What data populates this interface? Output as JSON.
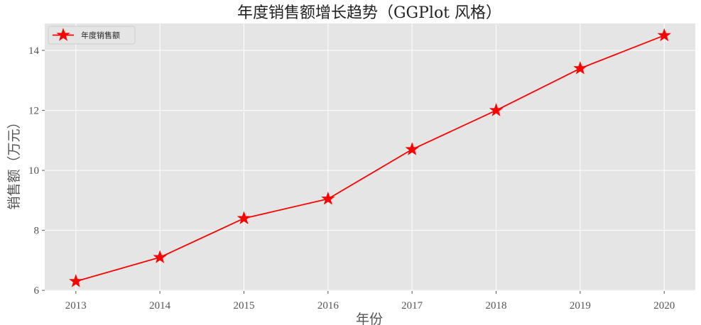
{
  "chart_data": {
    "type": "line",
    "title": "年度销售额增长趋势（GGPlot 风格）",
    "xlabel": "年份",
    "ylabel": "销售额（万元）",
    "x": [
      2013,
      2014,
      2015,
      2016,
      2017,
      2018,
      2019,
      2020
    ],
    "x_tick_labels": [
      "2013",
      "2014",
      "2015",
      "2016",
      "2017",
      "2018",
      "2019",
      "2020"
    ],
    "y_ticks": [
      6,
      8,
      10,
      12,
      14
    ],
    "y_tick_labels": [
      "6",
      "8",
      "10",
      "12",
      "14"
    ],
    "ylim": [
      5.98,
      14.9
    ],
    "xlim": [
      2012.63,
      2020.37
    ],
    "series": [
      {
        "name": "年度销售额",
        "values": [
          6.3,
          7.1,
          8.4,
          9.05,
          10.7,
          12.0,
          13.4,
          14.5
        ],
        "color": "#ff0000",
        "marker": "star"
      }
    ],
    "grid": true,
    "legend_position": "top-left",
    "style": "ggplot",
    "background_color": "#e5e5e5",
    "grid_color": "#ffffff"
  }
}
